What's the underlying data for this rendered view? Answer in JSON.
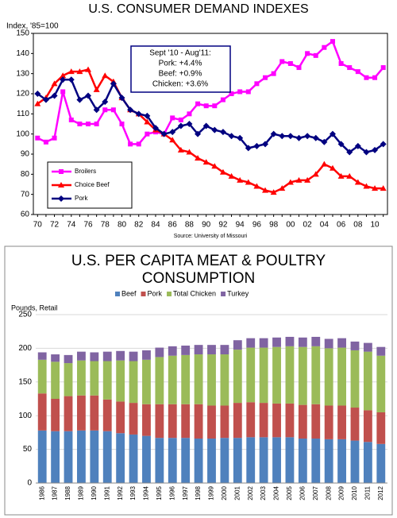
{
  "chart_data": [
    {
      "type": "line",
      "title": "U.S. CONSUMER DEMAND INDEXES",
      "y_label": "Index, '85=100",
      "source": "Source: University of Missouri",
      "categories": [
        "70",
        null,
        "72",
        null,
        "74",
        null,
        "76",
        null,
        "78",
        null,
        "80",
        null,
        "82",
        null,
        "84",
        null,
        "86",
        null,
        "88",
        null,
        "90",
        null,
        "92",
        null,
        "94",
        null,
        "96",
        null,
        "98",
        null,
        "00",
        null,
        "02",
        null,
        "04",
        null,
        "06",
        null,
        "08",
        null,
        "10",
        null
      ],
      "series": [
        {
          "name": "Broilers",
          "color": "#ff00ff",
          "marker": "square",
          "values": [
            98,
            96,
            98,
            121,
            107,
            105,
            105,
            105,
            112,
            112,
            105,
            95,
            95,
            100,
            101,
            100,
            108,
            107,
            110,
            115,
            114,
            114,
            117,
            120,
            121,
            121,
            125,
            128,
            130,
            136,
            135,
            133,
            140,
            139,
            143,
            146,
            135,
            133,
            131,
            128,
            128,
            133
          ]
        },
        {
          "name": "Choice Beef",
          "color": "#ff0000",
          "marker": "triangle",
          "values": [
            115,
            118,
            125,
            129,
            131,
            131,
            132,
            122,
            129,
            126,
            118,
            112,
            110,
            106,
            102,
            100,
            97,
            92,
            91,
            88,
            86,
            84,
            81,
            79,
            77,
            76,
            74,
            72,
            71,
            73,
            76,
            77,
            77,
            80,
            85,
            83,
            79,
            79,
            76,
            74,
            73,
            73
          ]
        },
        {
          "name": "Pork",
          "color": "#000080",
          "marker": "diamond",
          "values": [
            120,
            117,
            119,
            127,
            127,
            117,
            119,
            112,
            116,
            125,
            118,
            112,
            110,
            109,
            103,
            100,
            101,
            104,
            105,
            100,
            104,
            102,
            101,
            99,
            98,
            93,
            94,
            95,
            100,
            99,
            99,
            98,
            99,
            98,
            96,
            100,
            95,
            91,
            94,
            91,
            92,
            95
          ]
        }
      ],
      "ylim": [
        60,
        150
      ],
      "yticks": [
        60,
        70,
        80,
        90,
        100,
        110,
        120,
        130,
        140,
        150
      ],
      "legend": "lower left",
      "annotation": [
        "Sept '10 - Aug'11:",
        "Pork: +4.4%",
        "Beef: +0.9%",
        "Chicken: +3.6%"
      ]
    },
    {
      "type": "bar",
      "stacked": true,
      "title": "U.S. PER CAPITA MEAT & POULTRY CONSUMPTION",
      "y_label": "Pounds, Retail",
      "categories": [
        "1986",
        "1987",
        "1988",
        "1989",
        "1990",
        "1991",
        "1992",
        "1993",
        "1994",
        "1995",
        "1996",
        "1997",
        "1998",
        "1999",
        "2000",
        "2001",
        "2002",
        "2003",
        "2004",
        "2005",
        "2006",
        "2007",
        "2008",
        "2009",
        "2010",
        "2011",
        "2012"
      ],
      "series": [
        {
          "name": "Beef",
          "color": "#4f81bd",
          "values": [
            78,
            77,
            77,
            78,
            78,
            77,
            74,
            72,
            70,
            67,
            67,
            67,
            66,
            66,
            67,
            67,
            68,
            68,
            68,
            68,
            66,
            66,
            65,
            65,
            63,
            61,
            58
          ]
        },
        {
          "name": "Pork",
          "color": "#c0504d",
          "values": [
            55,
            48,
            52,
            52,
            52,
            47,
            47,
            47,
            47,
            50,
            50,
            50,
            51,
            49,
            48,
            52,
            52,
            51,
            50,
            50,
            50,
            51,
            50,
            50,
            49,
            47,
            47
          ]
        },
        {
          "name": "Total Chicken",
          "color": "#9bbb59",
          "values": [
            50,
            55,
            49,
            52,
            51,
            57,
            61,
            62,
            66,
            70,
            72,
            73,
            74,
            76,
            76,
            79,
            81,
            82,
            84,
            85,
            86,
            86,
            85,
            86,
            85,
            87,
            84
          ]
        },
        {
          "name": "Turkey",
          "color": "#8064a2",
          "values": [
            11,
            11,
            12,
            13,
            13,
            14,
            14,
            14,
            14,
            14,
            14,
            14,
            14,
            14,
            14,
            14,
            14,
            14,
            14,
            14,
            14,
            14,
            14,
            14,
            13,
            13,
            13
          ]
        }
      ],
      "ylim": [
        0,
        250
      ],
      "yticks": [
        0,
        50,
        100,
        150,
        200,
        250
      ],
      "legend": "top"
    }
  ]
}
